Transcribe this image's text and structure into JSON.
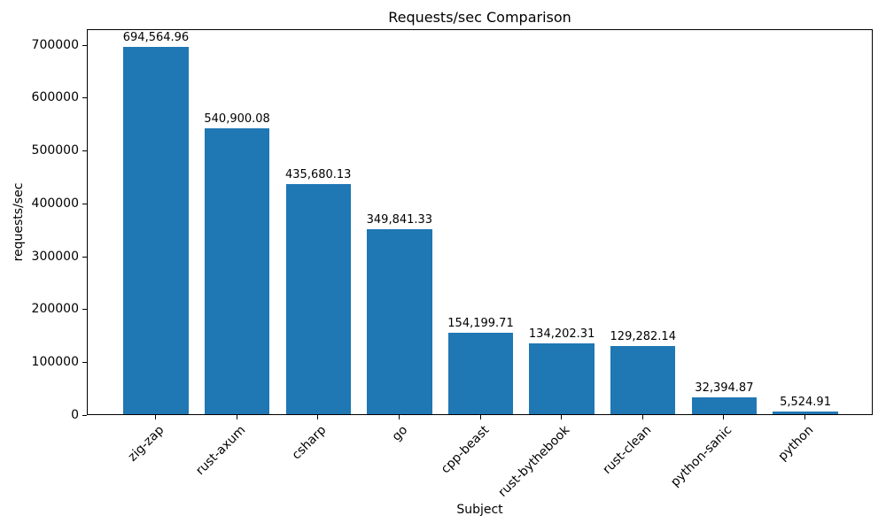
{
  "chart_data": {
    "type": "bar",
    "title": "Requests/sec Comparison",
    "xlabel": "Subject",
    "ylabel": "requests/sec",
    "categories": [
      "zig-zap",
      "rust-axum",
      "csharp",
      "go",
      "cpp-beast",
      "rust-bythebook",
      "rust-clean",
      "python-sanic",
      "python"
    ],
    "values": [
      694564.96,
      540900.08,
      435680.13,
      349841.33,
      154199.71,
      134202.31,
      129282.14,
      32394.87,
      5524.91
    ],
    "value_labels": [
      "694,564.96",
      "540,900.08",
      "435,680.13",
      "349,841.33",
      "154,199.71",
      "134,202.31",
      "129,282.14",
      "32,394.87",
      "5,524.91"
    ],
    "yticks": [
      0,
      100000,
      200000,
      300000,
      400000,
      500000,
      600000,
      700000
    ],
    "ylim": [
      0,
      729293
    ],
    "bar_color": "#1f77b4",
    "text_color": "#000000",
    "grid": false,
    "legend": null
  }
}
